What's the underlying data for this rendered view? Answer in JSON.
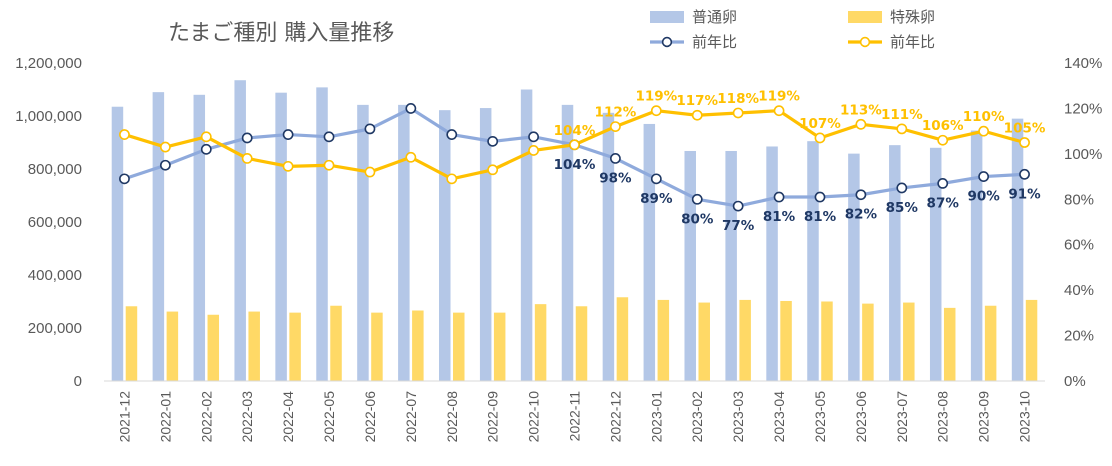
{
  "chart_data": {
    "type": "bar+line",
    "title": "たまご種別 購入量推移",
    "categories": [
      "2021-12",
      "2022-01",
      "2022-02",
      "2022-03",
      "2022-04",
      "2022-05",
      "2022-06",
      "2022-07",
      "2022-08",
      "2022-09",
      "2022-10",
      "2022-11",
      "2022-12",
      "2023-01",
      "2023-02",
      "2023-03",
      "2023-04",
      "2023-05",
      "2023-06",
      "2023-07",
      "2023-08",
      "2023-09",
      "2023-10"
    ],
    "y_left": {
      "min": 0,
      "max": 1200000,
      "step": 200000,
      "ticks": [
        "0",
        "200,000",
        "400,000",
        "600,000",
        "800,000",
        "1,000,000",
        "1,200,000"
      ]
    },
    "y_right": {
      "min": 0,
      "max": 140,
      "step": 20,
      "ticks": [
        "0%",
        "20%",
        "40%",
        "60%",
        "80%",
        "100%",
        "120%",
        "140%"
      ]
    },
    "bars": [
      {
        "name": "普通卵",
        "color": "#B4C7E7",
        "values": [
          1035000,
          1090000,
          1080000,
          1135000,
          1088000,
          1108000,
          1042000,
          1042000,
          1022000,
          1030000,
          1100000,
          1042000,
          1012000,
          970000,
          868000,
          868000,
          885000,
          905000,
          858000,
          890000,
          880000,
          945000,
          990000
        ]
      },
      {
        "name": "特殊卵",
        "color": "#FFD966",
        "values": [
          282000,
          262000,
          250000,
          262000,
          258000,
          284000,
          258000,
          266000,
          258000,
          258000,
          290000,
          282000,
          316000,
          306000,
          296000,
          306000,
          302000,
          300000,
          292000,
          296000,
          276000,
          284000,
          306000
        ]
      }
    ],
    "lines": [
      {
        "name": "前年比",
        "series_of": "普通卵",
        "color": "#8FAADC",
        "label_color": "#1F3864",
        "values": [
          89,
          95,
          102,
          107,
          108.5,
          107.5,
          111,
          120,
          108.5,
          105.5,
          107.5,
          104,
          98,
          89,
          80,
          77,
          81,
          81,
          82,
          85,
          87,
          90,
          91
        ],
        "labels": [
          "",
          "",
          "",
          "",
          "",
          "",
          "",
          "",
          "",
          "",
          "",
          "104%",
          "98%",
          "89%",
          "80%",
          "77%",
          "81%",
          "81%",
          "82%",
          "85%",
          "87%",
          "90%",
          "91%"
        ]
      },
      {
        "name": "前年比",
        "series_of": "特殊卵",
        "color": "#FFC000",
        "label_color": "#FFC000",
        "values": [
          108.5,
          103,
          107.5,
          98,
          94.5,
          95,
          92,
          98.5,
          89,
          93,
          101.5,
          104,
          112,
          119,
          117,
          118,
          119,
          107,
          113,
          111,
          106,
          110,
          105
        ],
        "labels": [
          "",
          "",
          "",
          "",
          "",
          "",
          "",
          "",
          "",
          "",
          "",
          "104%",
          "112%",
          "119%",
          "117%",
          "118%",
          "119%",
          "107%",
          "113%",
          "111%",
          "106%",
          "110%",
          "105%"
        ]
      }
    ],
    "legend": {
      "placement": "top-right",
      "items": [
        {
          "label": "普通卵",
          "kind": "bar",
          "color": "#B4C7E7"
        },
        {
          "label": "特殊卵",
          "kind": "bar",
          "color": "#FFD966"
        },
        {
          "label": "前年比",
          "kind": "line",
          "color": "#8FAADC"
        },
        {
          "label": "前年比",
          "kind": "line",
          "color": "#FFC000"
        }
      ]
    },
    "grid": false
  }
}
